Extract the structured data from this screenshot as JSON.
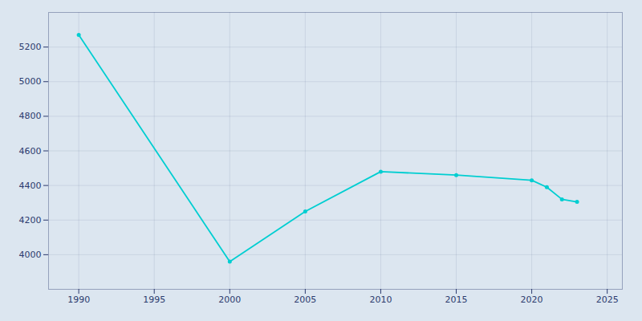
{
  "chart_data": {
    "type": "line",
    "x": [
      1990,
      2000,
      2005,
      2010,
      2015,
      2020,
      2021,
      2022,
      2023
    ],
    "values": [
      5270,
      3960,
      4250,
      4480,
      4460,
      4430,
      4390,
      4320,
      4305
    ],
    "color": "#00CED1",
    "marker": "circle",
    "xlim": [
      1988,
      2026
    ],
    "ylim": [
      3800,
      5400
    ],
    "xticks": [
      1990,
      1995,
      2000,
      2005,
      2010,
      2015,
      2020,
      2025
    ],
    "yticks": [
      4000,
      4200,
      4400,
      4600,
      4800,
      5000,
      5200
    ],
    "grid": true
  }
}
